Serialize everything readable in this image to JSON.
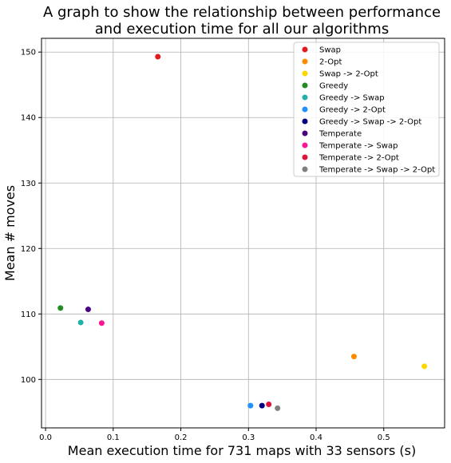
{
  "chart_data": {
    "type": "scatter",
    "title": [
      "A graph to show the relationship between performance",
      "and execution time for all our algorithms"
    ],
    "xlabel": "Mean execution time for 731 maps with 33 sensors (s)",
    "ylabel": "Mean # moves",
    "xlim": [
      -0.006,
      0.59
    ],
    "ylim": [
      92.6,
      152.1
    ],
    "xticks": [
      0.0,
      0.1,
      0.2,
      0.3,
      0.4,
      0.5
    ],
    "xtick_labels": [
      "0.0",
      "0.1",
      "0.2",
      "0.3",
      "0.4",
      "0.5"
    ],
    "yticks": [
      100,
      110,
      120,
      130,
      140,
      150
    ],
    "ytick_labels": [
      "100",
      "110",
      "120",
      "130",
      "140",
      "150"
    ],
    "grid": true,
    "legend_position": "top-right",
    "series": [
      {
        "name": "Swap",
        "color": "#e31a1c",
        "x": 0.166,
        "y": 149.3
      },
      {
        "name": "2-Opt",
        "color": "#ff8c00",
        "x": 0.456,
        "y": 103.5
      },
      {
        "name": "Swap -> 2-Opt",
        "color": "#ffd700",
        "x": 0.56,
        "y": 102.0
      },
      {
        "name": "Greedy",
        "color": "#228b22",
        "x": 0.022,
        "y": 110.9
      },
      {
        "name": "Greedy -> Swap",
        "color": "#20b2aa",
        "x": 0.052,
        "y": 108.7
      },
      {
        "name": "Greedy -> 2-Opt",
        "color": "#1e90ff",
        "x": 0.303,
        "y": 96.0
      },
      {
        "name": "Greedy -> Swap -> 2-Opt",
        "color": "#000080",
        "x": 0.32,
        "y": 96.0
      },
      {
        "name": "Temperate",
        "color": "#4b0082",
        "x": 0.063,
        "y": 110.7
      },
      {
        "name": "Temperate -> Swap",
        "color": "#ff1493",
        "x": 0.083,
        "y": 108.6
      },
      {
        "name": "Temperate -> 2-Opt",
        "color": "#dc143c",
        "x": 0.33,
        "y": 96.2
      },
      {
        "name": "Temperate -> Swap -> 2-Opt",
        "color": "#808080",
        "x": 0.343,
        "y": 95.6
      }
    ]
  }
}
